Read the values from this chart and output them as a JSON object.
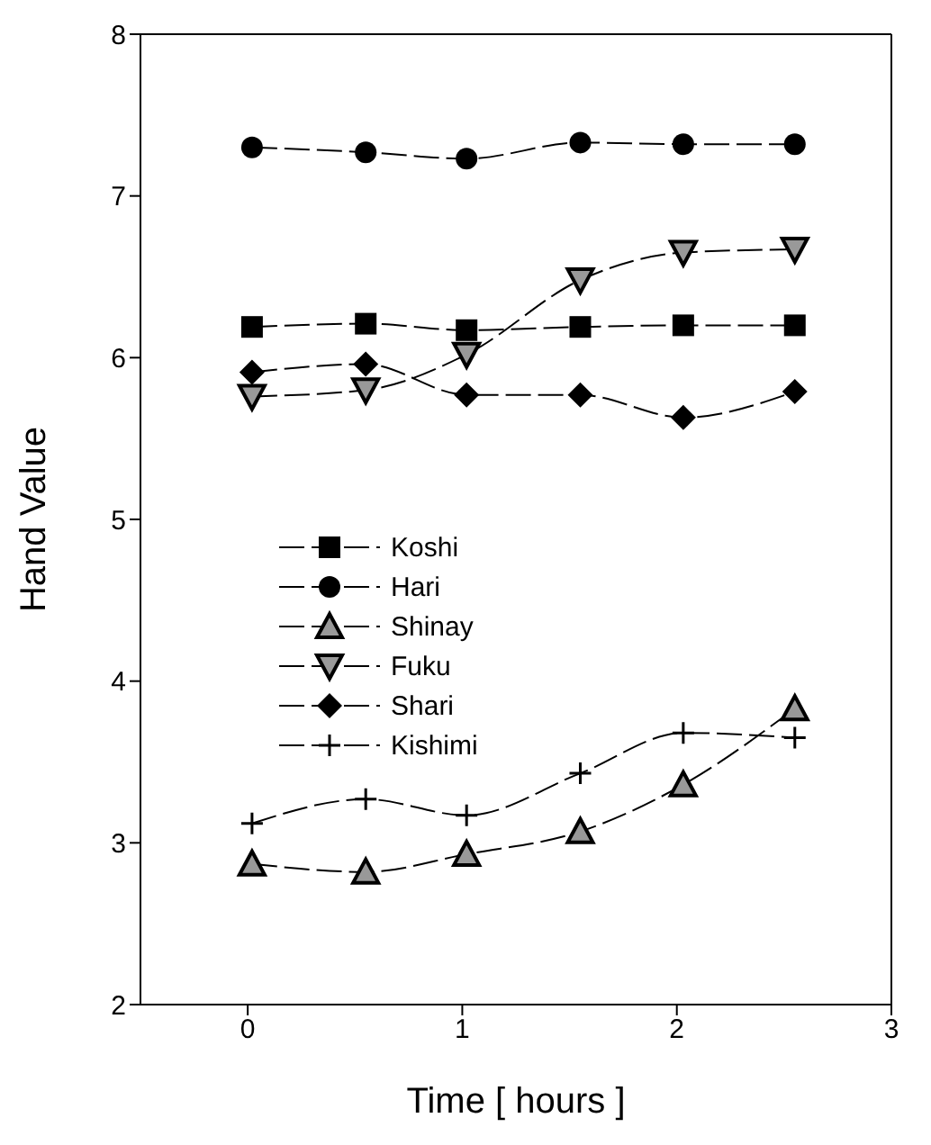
{
  "chart_data": {
    "type": "line",
    "xlabel": "Time [ hours ]",
    "ylabel": "Hand Value",
    "x": [
      0.02,
      0.55,
      1.02,
      1.55,
      2.03,
      2.55
    ],
    "xlim": [
      -0.5,
      3
    ],
    "xticks": [
      0,
      1,
      2,
      3
    ],
    "ylim": [
      2,
      8
    ],
    "yticks": [
      2,
      3,
      4,
      5,
      6,
      7,
      8
    ],
    "grid": false,
    "legend": "left",
    "line_style": "dashed",
    "series": [
      {
        "name": "Koshi",
        "color": "#000000",
        "marker": "square",
        "values": [
          6.19,
          6.21,
          6.17,
          6.19,
          6.2,
          6.2
        ]
      },
      {
        "name": "Hari",
        "color": "#000000",
        "marker": "circle",
        "values": [
          7.3,
          7.27,
          7.23,
          7.33,
          7.32,
          7.32
        ]
      },
      {
        "name": "Shinay",
        "color": "#000000",
        "marker": "triangle",
        "values": [
          2.87,
          2.82,
          2.93,
          3.07,
          3.36,
          3.83
        ]
      },
      {
        "name": "Fuku",
        "color": "#000000",
        "marker": "triangle-down",
        "values": [
          5.76,
          5.8,
          6.02,
          6.48,
          6.65,
          6.67
        ]
      },
      {
        "name": "Shari",
        "color": "#000000",
        "marker": "diamond",
        "values": [
          5.91,
          5.96,
          5.77,
          5.77,
          5.63,
          5.79
        ]
      },
      {
        "name": "Kishimi",
        "color": "#000000",
        "marker": "cross",
        "values": [
          3.12,
          3.27,
          3.17,
          3.43,
          3.68,
          3.65
        ]
      }
    ]
  }
}
